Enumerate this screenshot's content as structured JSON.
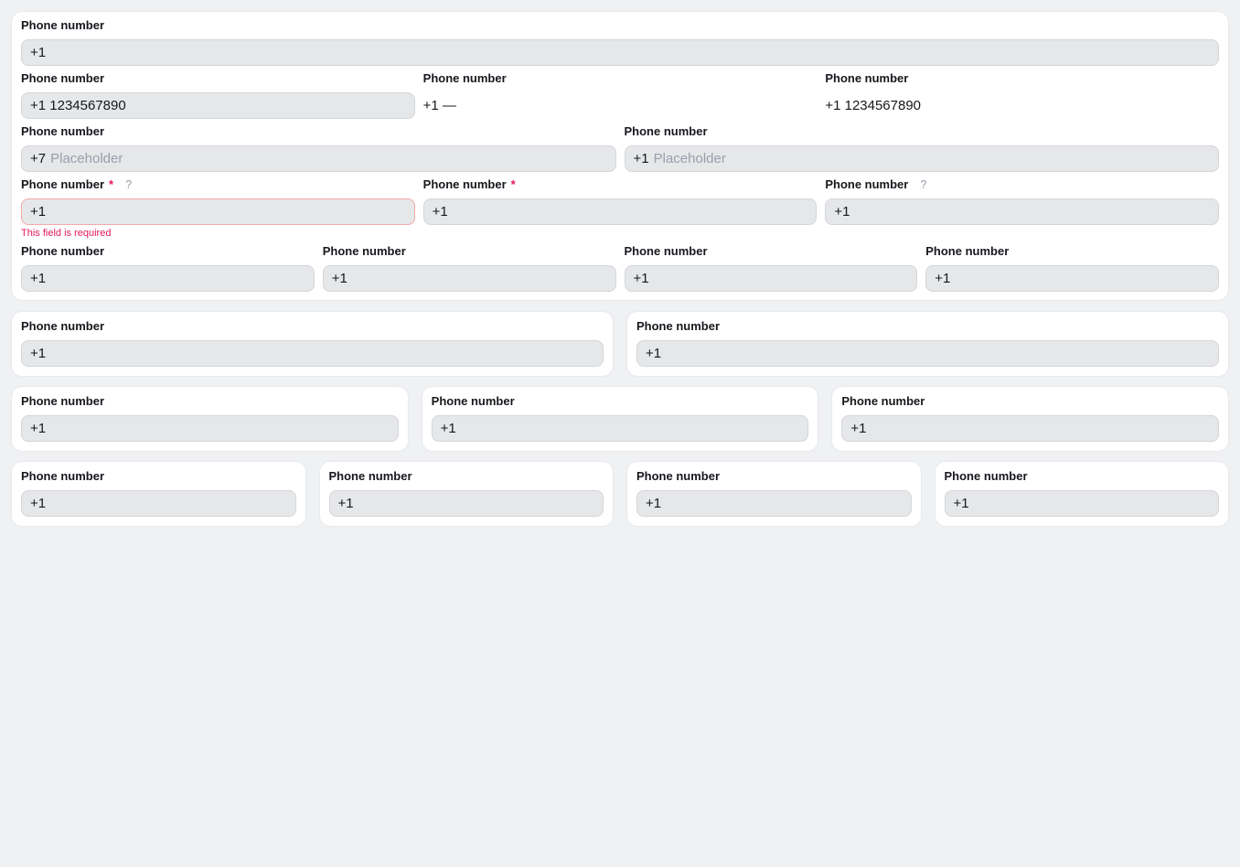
{
  "colors": {
    "page_bg": "#f0f1f3",
    "card_bg": "#ffffff",
    "input_bg": "#e6e7e9",
    "input_border": "#d5d6da",
    "error_accent": "#e6185e",
    "error_border": "#f5a9a6",
    "placeholder_text": "#99a0ab"
  },
  "main_card": {
    "fields": [
      {
        "label": "Phone number",
        "value": "+1"
      },
      {
        "label": "Phone number",
        "value": "+1 1234567890"
      },
      {
        "label": "Phone number",
        "text": "+1 —"
      },
      {
        "label": "Phone number",
        "text": "+1 1234567890"
      },
      {
        "label": "Phone number",
        "code": "+7",
        "placeholder": "Placeholder"
      },
      {
        "label": "Phone number",
        "code": "+1",
        "placeholder": "Placeholder"
      },
      {
        "label": "Phone number",
        "required_mark": "*",
        "help_icon": "?",
        "value": "+1",
        "error": "This field is required"
      },
      {
        "label": "Phone number",
        "required_mark": "*",
        "value": "+1"
      },
      {
        "label": "Phone number",
        "help_icon": "?",
        "value": "+1"
      },
      {
        "label": "Phone number",
        "value": "+1"
      },
      {
        "label": "Phone number",
        "value": "+1"
      },
      {
        "label": "Phone number",
        "value": "+1"
      },
      {
        "label": "Phone number",
        "value": "+1"
      }
    ]
  },
  "island_rows": {
    "two": [
      {
        "label": "Phone number",
        "value": "+1"
      },
      {
        "label": "Phone number",
        "value": "+1"
      }
    ],
    "three": [
      {
        "label": "Phone number",
        "value": "+1"
      },
      {
        "label": "Phone number",
        "value": "+1"
      },
      {
        "label": "Phone number",
        "value": "+1"
      }
    ],
    "four": [
      {
        "label": "Phone number",
        "value": "+1"
      },
      {
        "label": "Phone number",
        "value": "+1"
      },
      {
        "label": "Phone number",
        "value": "+1"
      },
      {
        "label": "Phone number",
        "value": "+1"
      }
    ]
  }
}
